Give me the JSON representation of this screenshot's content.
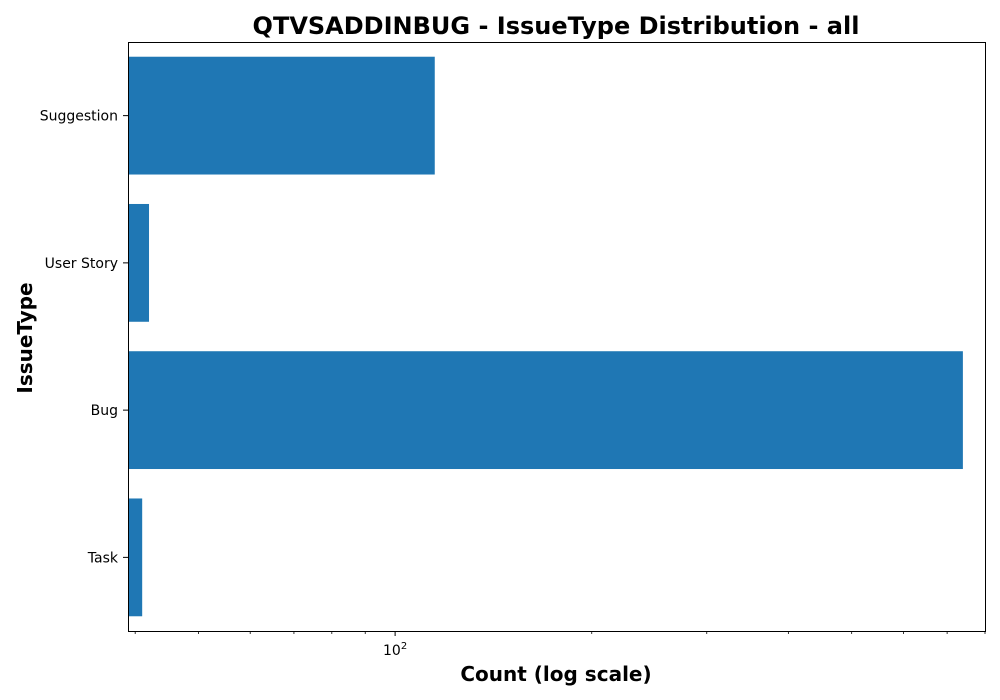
{
  "chart_data": {
    "type": "bar",
    "orientation": "horizontal",
    "title": "QTVSADDINBUG - IssueType Distribution - all",
    "xlabel": "Count (log scale)",
    "ylabel": "IssueType",
    "x_scale": "log",
    "xlim": [
      39,
      800
    ],
    "categories": [
      "Suggestion",
      "User Story",
      "Bug",
      "Task"
    ],
    "values": [
      115,
      42,
      740,
      41
    ],
    "major_ticks": [
      {
        "value": 100,
        "base": "10",
        "exponent": "2"
      }
    ],
    "minor_ticks": [
      40,
      50,
      60,
      70,
      80,
      90,
      200,
      300,
      400,
      500,
      600,
      700,
      800
    ],
    "grid": false,
    "legend": "none",
    "bar_color": "#1f77b4"
  }
}
